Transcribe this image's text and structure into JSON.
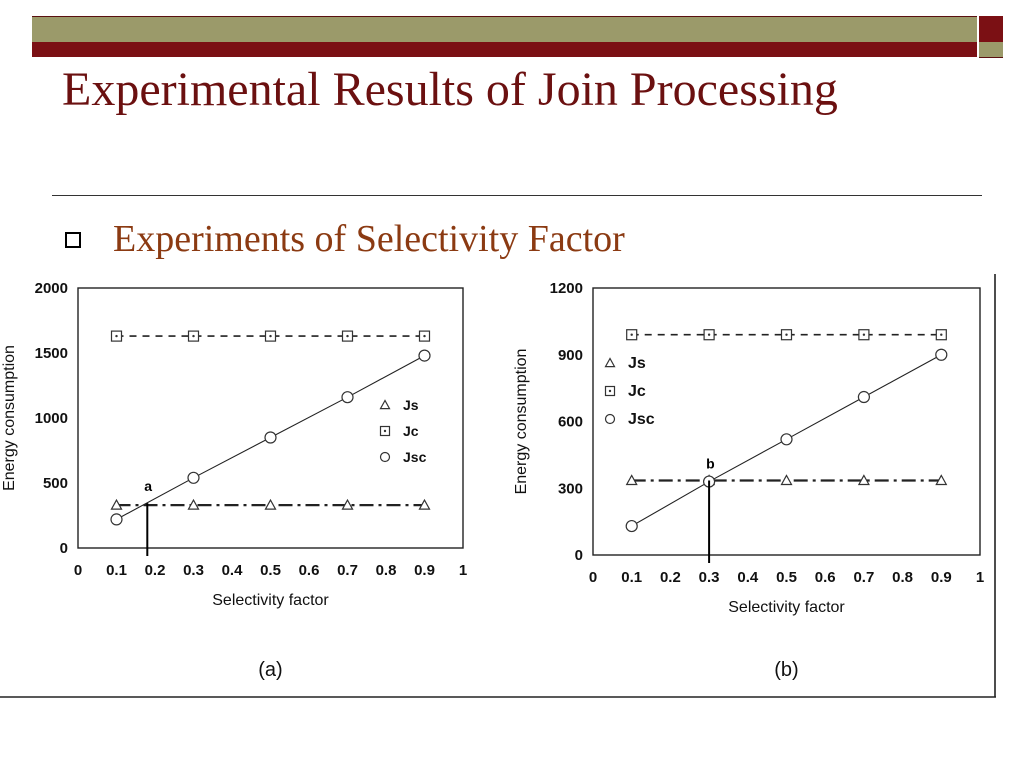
{
  "slide": {
    "title": "Experimental Results of Join Processing",
    "bullet": "Experiments of Selectivity Factor",
    "colors": {
      "olive": "#9b9a6a",
      "maroon": "#7b1014",
      "title": "#6b1010",
      "bullet": "#8b3a12"
    }
  },
  "chart_data": [
    {
      "type": "line",
      "panel_label": "(a)",
      "title": "",
      "xlabel": "Selectivity factor",
      "ylabel": "Energy consumption",
      "xlim": [
        0,
        1
      ],
      "ylim": [
        0,
        2000
      ],
      "x_ticks": [
        "0",
        "0.1",
        "0.2",
        "0.3",
        "0.4",
        "0.5",
        "0.6",
        "0.7",
        "0.8",
        "0.9",
        "1"
      ],
      "y_ticks": [
        "0",
        "500",
        "1000",
        "1500",
        "2000"
      ],
      "x": [
        0.1,
        0.3,
        0.5,
        0.7,
        0.9
      ],
      "series": [
        {
          "name": "Js",
          "marker": "triangle",
          "style": "dashdot",
          "values": [
            330,
            330,
            330,
            330,
            330
          ]
        },
        {
          "name": "Jc",
          "marker": "square",
          "style": "dashed",
          "values": [
            1630,
            1630,
            1630,
            1630,
            1630
          ]
        },
        {
          "name": "Jsc",
          "marker": "circle",
          "style": "solid",
          "values": [
            220,
            540,
            850,
            1160,
            1480
          ]
        }
      ],
      "legend": "right",
      "annotation": {
        "label": "a",
        "x": 0.18,
        "y": 345
      }
    },
    {
      "type": "line",
      "panel_label": "(b)",
      "title": "",
      "xlabel": "Selectivity factor",
      "ylabel": "Energy consumption",
      "xlim": [
        0,
        1
      ],
      "ylim": [
        0,
        1200
      ],
      "x_ticks": [
        "0",
        "0.1",
        "0.2",
        "0.3",
        "0.4",
        "0.5",
        "0.6",
        "0.7",
        "0.8",
        "0.9",
        "1"
      ],
      "y_ticks": [
        "0",
        "300",
        "600",
        "900",
        "1200"
      ],
      "x": [
        0.1,
        0.3,
        0.5,
        0.7,
        0.9
      ],
      "series": [
        {
          "name": "Js",
          "marker": "triangle",
          "style": "dashdot",
          "values": [
            335,
            335,
            335,
            335,
            335
          ]
        },
        {
          "name": "Jc",
          "marker": "square",
          "style": "dashed",
          "values": [
            990,
            990,
            990,
            990,
            990
          ]
        },
        {
          "name": "Jsc",
          "marker": "circle",
          "style": "solid",
          "values": [
            130,
            330,
            520,
            710,
            900
          ]
        }
      ],
      "legend": "left",
      "annotation": {
        "label": "b",
        "x": 0.3,
        "y": 335
      }
    }
  ]
}
